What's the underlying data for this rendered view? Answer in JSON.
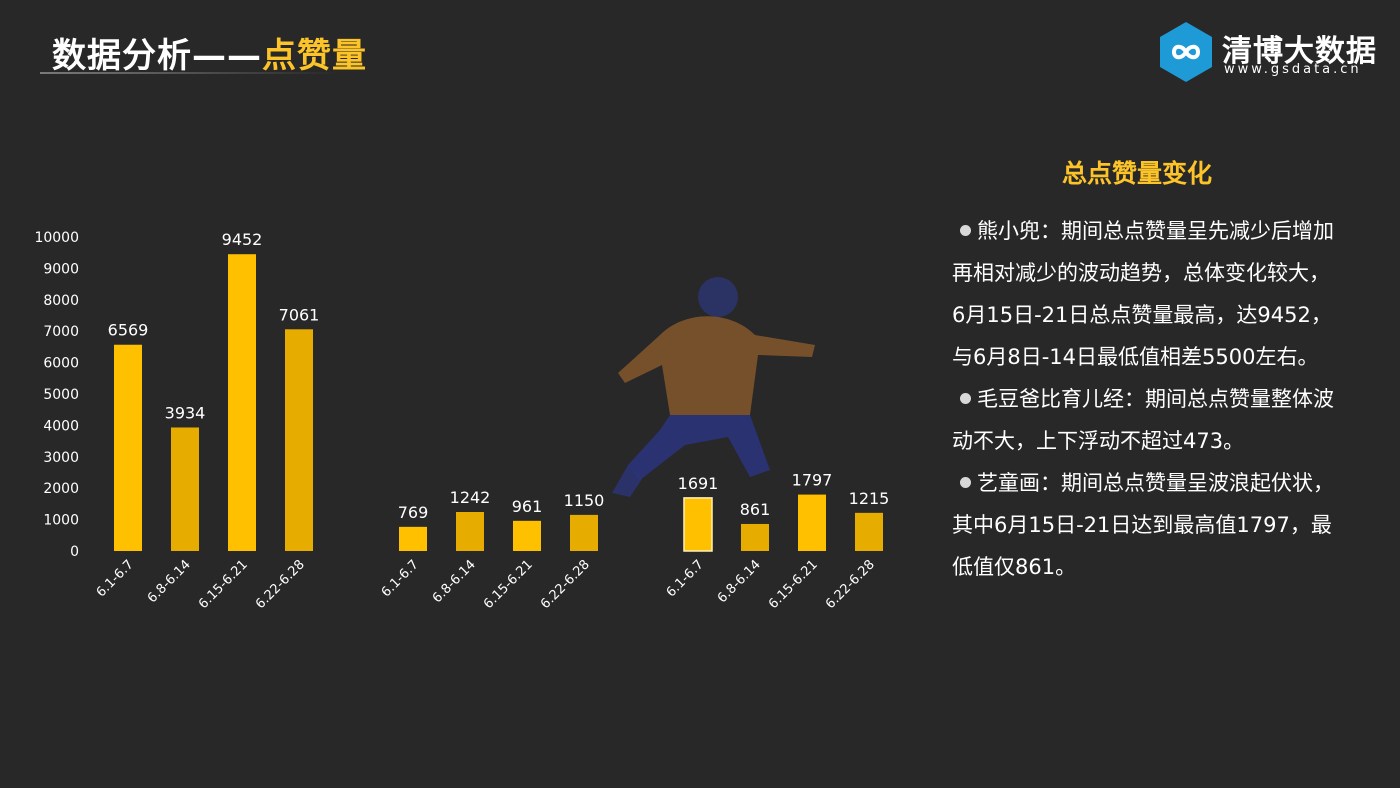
{
  "header": {
    "title_prefix": "数据分析——",
    "title_highlight": "点赞量"
  },
  "logo": {
    "name": "清博大数据",
    "url": "www.gsdata.cn",
    "icon": "infinity-hex-icon",
    "color": "#1e9ad6"
  },
  "colors": {
    "accent": "#fcc428",
    "bar": "#ffc000",
    "bar_alt": "#e6ac00",
    "background": "#282828"
  },
  "chart_data": {
    "type": "bar",
    "ylim": [
      0,
      10000
    ],
    "yticks": [
      "0",
      "1000",
      "2000",
      "3000",
      "4000",
      "5000",
      "6000",
      "7000",
      "8000",
      "9000",
      "10000"
    ],
    "groups": [
      {
        "name": "熊小兜",
        "categories": [
          "6.1-6.7",
          "6.8-6.14",
          "6.15-6.21",
          "6.22-6.28"
        ],
        "values": [
          6569,
          3934,
          9452,
          7061
        ]
      },
      {
        "name": "毛豆爸比育儿经",
        "categories": [
          "6.1-6.7",
          "6.8-6.14",
          "6.15-6.21",
          "6.22-6.28"
        ],
        "values": [
          769,
          1242,
          961,
          1150
        ]
      },
      {
        "name": "艺童画",
        "categories": [
          "6.1-6.7",
          "6.8-6.14",
          "6.15-6.21",
          "6.22-6.28"
        ],
        "values": [
          1691,
          861,
          1797,
          1215
        ]
      }
    ],
    "grid": false,
    "legend": "none"
  },
  "panel": {
    "title": "总点赞量变化",
    "items": [
      {
        "text": "熊小兜：期间总点赞量呈先减少后增加再相对减少的波动趋势，总体变化较大，6月15日-21日总点赞量最高，达9452，与6月8日-14日最低值相差5500左右。"
      },
      {
        "text": "毛豆爸比育儿经：期间总点赞量整体波动不大，上下浮动不超过473。"
      },
      {
        "text": "艺童画：期间总点赞量呈波浪起伏状，其中6月15日-21日达到最高值1797，最低值仅861。"
      }
    ]
  }
}
